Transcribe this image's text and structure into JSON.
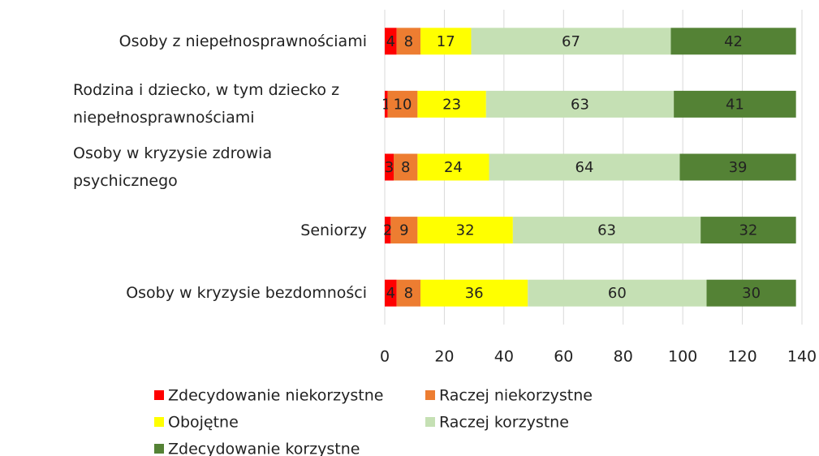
{
  "chart_data": {
    "type": "stacked-bar-horizontal",
    "categories": [
      "Osoby z niepełnosprawnościami",
      "Rodzina i dziecko, w tym dziecko z niepełnosprawnościami",
      "Osoby w kryzysie zdrowia psychicznego",
      "Seniorzy",
      "Osoby w kryzysie bezdomności"
    ],
    "series": [
      {
        "name": "Zdecydowanie niekorzystne",
        "color": "#ff0000",
        "values": [
          4,
          1,
          3,
          2,
          4
        ]
      },
      {
        "name": "Raczej niekorzystne",
        "color": "#ed7d31",
        "values": [
          8,
          10,
          8,
          9,
          8
        ]
      },
      {
        "name": "Obojętne",
        "color": "#ffff00",
        "values": [
          17,
          23,
          24,
          32,
          36
        ]
      },
      {
        "name": "Raczej korzystne",
        "color": "#c5e0b4",
        "values": [
          67,
          63,
          64,
          63,
          60
        ]
      },
      {
        "name": "Zdecydowanie korzystne",
        "color": "#548235",
        "values": [
          42,
          41,
          39,
          32,
          30
        ]
      }
    ],
    "xlim": [
      0,
      140
    ],
    "xticks": [
      0,
      20,
      40,
      60,
      80,
      100,
      120,
      140
    ],
    "grid": true,
    "legend": "bottom"
  }
}
